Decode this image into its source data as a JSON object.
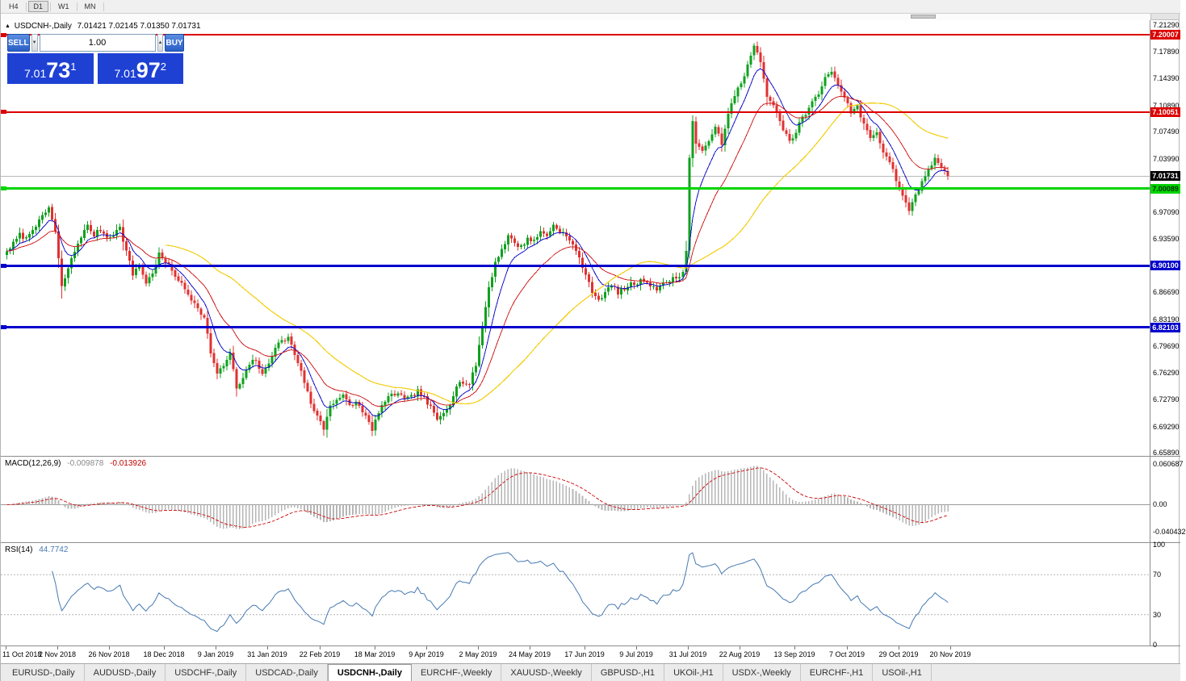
{
  "toolbar": {
    "timeframes": [
      {
        "label": "H4",
        "active": false
      },
      {
        "label": "D1",
        "active": true
      },
      {
        "label": "W1",
        "active": false
      },
      {
        "label": "MN",
        "active": false
      }
    ]
  },
  "icons": {
    "collapse": "▲",
    "spin_down": "▼",
    "spin_up": "▲"
  },
  "chart": {
    "title_symbol": "USDCNH-,Daily",
    "title_ohlc": "7.01421 7.02145 7.01350 7.01731"
  },
  "trade_panel": {
    "sell_label": "SELL",
    "buy_label": "BUY",
    "volume": "1.00",
    "sell_price": {
      "prefix": "7.01",
      "big": "73",
      "sup": "1"
    },
    "buy_price": {
      "prefix": "7.01",
      "big": "97",
      "sup": "2"
    }
  },
  "indicators": {
    "macd": {
      "title": "MACD(12,26,9)",
      "value_main": "-0.009878",
      "value_signal": "-0.013926",
      "axis_labels": [
        "0.060687",
        "0.00",
        "-0.040432"
      ],
      "axis_max": 0.060687,
      "axis_min": -0.040432,
      "hist_color": "#b6b6b6",
      "signal_color": "#d02020"
    },
    "rsi": {
      "title": "RSI(14)",
      "value": "44.7742",
      "line_color": "#4579b2",
      "levels": [
        {
          "label": "100",
          "value": 100,
          "dashed": false
        },
        {
          "label": "70",
          "value": 70,
          "dashed": true
        },
        {
          "label": "30",
          "value": 30,
          "dashed": true
        },
        {
          "label": "0",
          "value": 0,
          "dashed": false
        }
      ]
    }
  },
  "tabs": [
    {
      "label": "EURUSD-,Daily",
      "active": false
    },
    {
      "label": "AUDUSD-,Daily",
      "active": false
    },
    {
      "label": "USDCHF-,Daily",
      "active": false
    },
    {
      "label": "USDCAD-,Daily",
      "active": false
    },
    {
      "label": "USDCNH-,Daily",
      "active": true
    },
    {
      "label": "EURCHF-,Weekly",
      "active": false
    },
    {
      "label": "XAUUSD-,Weekly",
      "active": false
    },
    {
      "label": "GBPUSD-,H1",
      "active": false
    },
    {
      "label": "UKOil-,H1",
      "active": false
    },
    {
      "label": "USDX-,Weekly",
      "active": false
    },
    {
      "label": "EURCHF-,H1",
      "active": false
    },
    {
      "label": "USOil-,H1",
      "active": false
    }
  ],
  "chart_data": {
    "type": "candlestick",
    "symbol": "USDCNH",
    "timeframe": "Daily",
    "bars": 292,
    "up_color": "#0fa11f",
    "down_color": "#e03131",
    "price_axis": {
      "min": 6.6589,
      "max": 7.2129,
      "ticks": [
        "7.21290",
        "7.17890",
        "7.14390",
        "7.10890",
        "7.07490",
        "7.03990",
        "6.97090",
        "6.93590",
        "6.86690",
        "6.83190",
        "6.79690",
        "6.76290",
        "6.72790",
        "6.69290",
        "6.65890"
      ]
    },
    "current_price": {
      "label": "7.01731",
      "value": 7.01731
    },
    "horizontal_lines": [
      {
        "price_label": "7.20007",
        "value": 7.20007,
        "color": "#dd0000",
        "width": 2,
        "text_color": "#ffffff"
      },
      {
        "price_label": "7.10051",
        "value": 7.10051,
        "color": "#dd0000",
        "width": 2,
        "text_color": "#ffffff"
      },
      {
        "price_label": "7.00089",
        "value": 7.00089,
        "color": "#00d500",
        "width": 3,
        "text_color": "#003300"
      },
      {
        "price_label": "6.90100",
        "value": 6.901,
        "color": "#0000cc",
        "width": 3,
        "text_color": "#ffffff"
      },
      {
        "price_label": "6.82103",
        "value": 6.82103,
        "color": "#0000cc",
        "width": 3,
        "text_color": "#ffffff"
      }
    ],
    "moving_averages": [
      {
        "period": 8,
        "type": "ema",
        "color": "#1010c8"
      },
      {
        "period": 20,
        "type": "ema",
        "color": "#d02020"
      },
      {
        "period": 50,
        "type": "sma",
        "color": "#f2ce10"
      }
    ],
    "date_labels": [
      {
        "label": "11 Oct 2018",
        "index": 0
      },
      {
        "label": "2 Nov 2018",
        "index": 16
      },
      {
        "label": "26 Nov 2018",
        "index": 32
      },
      {
        "label": "18 Dec 2018",
        "index": 49
      },
      {
        "label": "9 Jan 2019",
        "index": 65
      },
      {
        "label": "31 Jan 2019",
        "index": 81
      },
      {
        "label": "22 Feb 2019",
        "index": 97
      },
      {
        "label": "18 Mar 2019",
        "index": 114
      },
      {
        "label": "9 Apr 2019",
        "index": 130
      },
      {
        "label": "2 May 2019",
        "index": 146
      },
      {
        "label": "24 May 2019",
        "index": 162
      },
      {
        "label": "17 Jun 2019",
        "index": 179
      },
      {
        "label": "9 Jul 2019",
        "index": 195
      },
      {
        "label": "31 Jul 2019",
        "index": 211
      },
      {
        "label": "22 Aug 2019",
        "index": 227
      },
      {
        "label": "13 Sep 2019",
        "index": 244
      },
      {
        "label": "7 Oct 2019",
        "index": 260
      },
      {
        "label": "29 Oct 2019",
        "index": 276
      },
      {
        "label": "20 Nov 2019",
        "index": 292
      }
    ],
    "close_anchors": [
      [
        0,
        6.92
      ],
      [
        2,
        6.93
      ],
      [
        4,
        6.941
      ],
      [
        6,
        6.936
      ],
      [
        8,
        6.95
      ],
      [
        10,
        6.958
      ],
      [
        12,
        6.97
      ],
      [
        13,
        6.977
      ],
      [
        15,
        6.945
      ],
      [
        17,
        6.873
      ],
      [
        19,
        6.898
      ],
      [
        21,
        6.92
      ],
      [
        23,
        6.94
      ],
      [
        25,
        6.952
      ],
      [
        27,
        6.941
      ],
      [
        29,
        6.948
      ],
      [
        31,
        6.938
      ],
      [
        33,
        6.943
      ],
      [
        35,
        6.95
      ],
      [
        37,
        6.92
      ],
      [
        39,
        6.89
      ],
      [
        41,
        6.903
      ],
      [
        43,
        6.878
      ],
      [
        45,
        6.892
      ],
      [
        47,
        6.916
      ],
      [
        49,
        6.906
      ],
      [
        51,
        6.895
      ],
      [
        53,
        6.883
      ],
      [
        55,
        6.87
      ],
      [
        57,
        6.858
      ],
      [
        59,
        6.848
      ],
      [
        61,
        6.833
      ],
      [
        63,
        6.79
      ],
      [
        65,
        6.76
      ],
      [
        67,
        6.772
      ],
      [
        69,
        6.788
      ],
      [
        71,
        6.742
      ],
      [
        73,
        6.754
      ],
      [
        75,
        6.774
      ],
      [
        77,
        6.78
      ],
      [
        79,
        6.758
      ],
      [
        81,
        6.776
      ],
      [
        83,
        6.796
      ],
      [
        85,
        6.803
      ],
      [
        87,
        6.809
      ],
      [
        89,
        6.786
      ],
      [
        91,
        6.766
      ],
      [
        93,
        6.736
      ],
      [
        95,
        6.712
      ],
      [
        97,
        6.7
      ],
      [
        98,
        6.69
      ],
      [
        100,
        6.721
      ],
      [
        102,
        6.728
      ],
      [
        104,
        6.733
      ],
      [
        106,
        6.719
      ],
      [
        108,
        6.724
      ],
      [
        110,
        6.714
      ],
      [
        112,
        6.697
      ],
      [
        113,
        6.687
      ],
      [
        115,
        6.713
      ],
      [
        117,
        6.725
      ],
      [
        119,
        6.733
      ],
      [
        121,
        6.737
      ],
      [
        123,
        6.727
      ],
      [
        125,
        6.731
      ],
      [
        127,
        6.739
      ],
      [
        129,
        6.729
      ],
      [
        131,
        6.717
      ],
      [
        133,
        6.701
      ],
      [
        135,
        6.711
      ],
      [
        137,
        6.723
      ],
      [
        139,
        6.747
      ],
      [
        141,
        6.751
      ],
      [
        143,
        6.747
      ],
      [
        145,
        6.773
      ],
      [
        147,
        6.823
      ],
      [
        149,
        6.873
      ],
      [
        151,
        6.905
      ],
      [
        153,
        6.923
      ],
      [
        155,
        6.939
      ],
      [
        157,
        6.931
      ],
      [
        159,
        6.925
      ],
      [
        161,
        6.937
      ],
      [
        163,
        6.933
      ],
      [
        165,
        6.945
      ],
      [
        167,
        6.941
      ],
      [
        169,
        6.953
      ],
      [
        171,
        6.947
      ],
      [
        173,
        6.939
      ],
      [
        175,
        6.927
      ],
      [
        177,
        6.913
      ],
      [
        179,
        6.887
      ],
      [
        181,
        6.869
      ],
      [
        183,
        6.857
      ],
      [
        185,
        6.867
      ],
      [
        187,
        6.875
      ],
      [
        189,
        6.867
      ],
      [
        191,
        6.871
      ],
      [
        193,
        6.877
      ],
      [
        195,
        6.879
      ],
      [
        197,
        6.883
      ],
      [
        199,
        6.877
      ],
      [
        201,
        6.871
      ],
      [
        203,
        6.877
      ],
      [
        205,
        6.883
      ],
      [
        207,
        6.885
      ],
      [
        209,
        6.893
      ],
      [
        210,
        6.919
      ],
      [
        211,
        7.042
      ],
      [
        212,
        7.089
      ],
      [
        213,
        7.059
      ],
      [
        215,
        7.047
      ],
      [
        217,
        7.065
      ],
      [
        219,
        7.083
      ],
      [
        221,
        7.057
      ],
      [
        223,
        7.097
      ],
      [
        225,
        7.123
      ],
      [
        227,
        7.139
      ],
      [
        229,
        7.159
      ],
      [
        231,
        7.187
      ],
      [
        233,
        7.163
      ],
      [
        235,
        7.123
      ],
      [
        237,
        7.107
      ],
      [
        239,
        7.087
      ],
      [
        241,
        7.069
      ],
      [
        243,
        7.063
      ],
      [
        245,
        7.087
      ],
      [
        247,
        7.097
      ],
      [
        249,
        7.113
      ],
      [
        251,
        7.123
      ],
      [
        253,
        7.147
      ],
      [
        255,
        7.153
      ],
      [
        257,
        7.133
      ],
      [
        259,
        7.121
      ],
      [
        261,
        7.099
      ],
      [
        263,
        7.107
      ],
      [
        265,
        7.083
      ],
      [
        267,
        7.067
      ],
      [
        269,
        7.075
      ],
      [
        271,
        7.049
      ],
      [
        273,
        7.037
      ],
      [
        275,
        7.013
      ],
      [
        277,
        6.989
      ],
      [
        279,
        6.975
      ],
      [
        281,
        6.991
      ],
      [
        283,
        7.009
      ],
      [
        285,
        7.027
      ],
      [
        287,
        7.039
      ],
      [
        289,
        7.031
      ],
      [
        291,
        7.0173
      ]
    ]
  }
}
